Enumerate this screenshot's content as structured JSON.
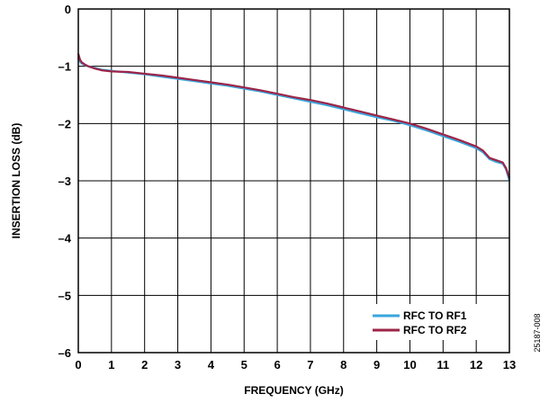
{
  "figure_id": "25187-008",
  "colors": {
    "rf1": "#3aa6dd",
    "rf2": "#9c2548",
    "grid": "#000000"
  },
  "chart_data": {
    "type": "line",
    "title": "",
    "xlabel": "FREQUENCY (GHz)",
    "ylabel": "INSERTION LOSS (dB)",
    "xlim": [
      0,
      13
    ],
    "ylim": [
      -6,
      0
    ],
    "xticks": [
      0,
      1,
      2,
      3,
      4,
      5,
      6,
      7,
      8,
      9,
      10,
      11,
      12,
      13
    ],
    "yticks": [
      0,
      -1,
      -2,
      -3,
      -4,
      -5,
      -6
    ],
    "ytick_labels": [
      "0",
      "–1",
      "–2",
      "–3",
      "–4",
      "–5",
      "–6"
    ],
    "grid": true,
    "legend_position": "bottom-right",
    "series": [
      {
        "name": "RFC TO RF1",
        "color": "#3aa6dd",
        "x": [
          0.0,
          0.05,
          0.1,
          0.2,
          0.3,
          0.5,
          0.7,
          1.0,
          1.5,
          2.0,
          2.5,
          3.0,
          3.5,
          4.0,
          4.5,
          5.0,
          5.5,
          6.0,
          6.5,
          7.0,
          7.5,
          8.0,
          8.5,
          9.0,
          9.5,
          10.0,
          10.5,
          11.0,
          11.5,
          12.0,
          12.2,
          12.4,
          12.6,
          12.8,
          12.9,
          13.0
        ],
        "y": [
          -0.83,
          -0.92,
          -0.95,
          -0.98,
          -1.0,
          -1.03,
          -1.06,
          -1.08,
          -1.11,
          -1.14,
          -1.18,
          -1.22,
          -1.26,
          -1.3,
          -1.34,
          -1.39,
          -1.44,
          -1.5,
          -1.56,
          -1.62,
          -1.68,
          -1.75,
          -1.82,
          -1.89,
          -1.95,
          -2.03,
          -2.12,
          -2.22,
          -2.32,
          -2.43,
          -2.5,
          -2.62,
          -2.67,
          -2.7,
          -2.8,
          -3.0
        ]
      },
      {
        "name": "RFC TO RF2",
        "color": "#9c2548",
        "x": [
          0.0,
          0.05,
          0.1,
          0.2,
          0.3,
          0.5,
          0.7,
          1.0,
          1.5,
          2.0,
          2.5,
          3.0,
          3.5,
          4.0,
          4.5,
          5.0,
          5.5,
          6.0,
          6.5,
          7.0,
          7.5,
          8.0,
          8.5,
          9.0,
          9.5,
          10.0,
          10.5,
          11.0,
          11.5,
          12.0,
          12.2,
          12.4,
          12.6,
          12.8,
          12.9,
          13.0
        ],
        "y": [
          -0.78,
          -0.88,
          -0.93,
          -0.97,
          -1.0,
          -1.04,
          -1.07,
          -1.09,
          -1.1,
          -1.13,
          -1.16,
          -1.2,
          -1.24,
          -1.28,
          -1.32,
          -1.37,
          -1.42,
          -1.48,
          -1.54,
          -1.59,
          -1.65,
          -1.72,
          -1.79,
          -1.86,
          -1.93,
          -2.0,
          -2.09,
          -2.19,
          -2.29,
          -2.4,
          -2.47,
          -2.6,
          -2.64,
          -2.68,
          -2.78,
          -2.95
        ]
      }
    ]
  }
}
